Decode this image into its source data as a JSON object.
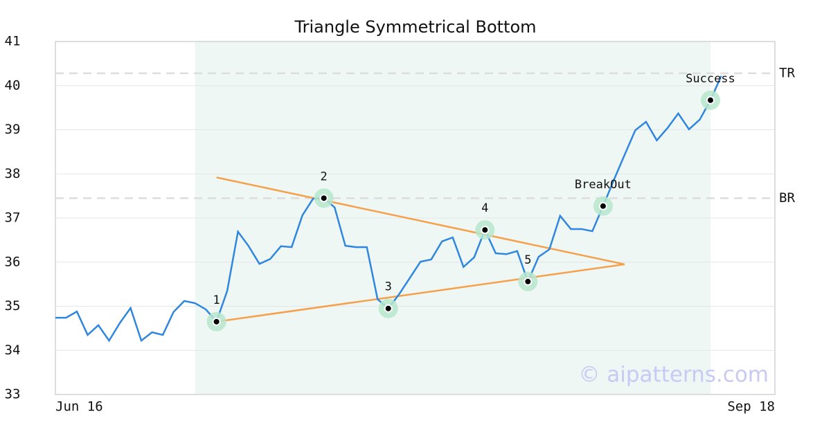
{
  "chart_data": {
    "type": "line",
    "title": "Triangle Symmetrical Bottom",
    "x": [
      0,
      1,
      2,
      3,
      4,
      5,
      6,
      7,
      8,
      9,
      10,
      11,
      12,
      13,
      14,
      15,
      16,
      17,
      18,
      19,
      20,
      21,
      22,
      23,
      24,
      25,
      26,
      27,
      28,
      29,
      30,
      31,
      32,
      33,
      34,
      35,
      36,
      37,
      38,
      39,
      40,
      41,
      42,
      43,
      44,
      45,
      46,
      47,
      48,
      49,
      50,
      51,
      52,
      53,
      54,
      55,
      56,
      57,
      58,
      59,
      60,
      61,
      62
    ],
    "values": [
      34.74,
      34.74,
      34.88,
      34.35,
      34.57,
      34.22,
      34.62,
      34.96,
      34.22,
      34.41,
      34.35,
      34.87,
      35.12,
      35.07,
      34.93,
      34.65,
      35.35,
      36.69,
      36.36,
      35.96,
      36.07,
      36.36,
      36.34,
      37.06,
      37.44,
      37.45,
      37.24,
      36.37,
      36.34,
      36.34,
      35.16,
      34.95,
      35.27,
      35.64,
      36.01,
      36.06,
      36.47,
      36.56,
      35.89,
      36.11,
      36.73,
      36.2,
      36.18,
      36.25,
      35.56,
      36.12,
      36.29,
      37.05,
      36.75,
      36.75,
      36.7,
      37.27,
      37.86,
      38.43,
      38.99,
      39.18,
      38.76,
      39.04,
      39.37,
      39.01,
      39.23,
      39.67,
      40.22
    ],
    "color": "#2e86de",
    "xlim": [
      0,
      67
    ],
    "xticks": [
      {
        "value": 0,
        "label": "Jun 16"
      },
      {
        "value": 67,
        "label": "Sep 18"
      }
    ],
    "ylim": [
      33,
      41
    ],
    "yticks": [
      33,
      34,
      35,
      36,
      37,
      38,
      39,
      40,
      41
    ],
    "grid": true,
    "shaded_range": [
      13,
      61
    ],
    "shade_color": "#eef7f3",
    "trend_color": "#f5a04a",
    "trend_lines": [
      {
        "x": [
          15,
          53
        ],
        "values": [
          34.65,
          35.95
        ]
      },
      {
        "x": [
          15,
          53
        ],
        "values": [
          37.92,
          35.95
        ]
      }
    ],
    "levels": [
      {
        "label": "TR",
        "value": 40.28
      },
      {
        "label": "BR",
        "value": 37.45
      }
    ],
    "points": [
      {
        "label": "1",
        "x": 15,
        "value": 34.65
      },
      {
        "label": "2",
        "x": 25,
        "value": 37.45
      },
      {
        "label": "3",
        "x": 31,
        "value": 34.95
      },
      {
        "label": "4",
        "x": 40,
        "value": 36.73
      },
      {
        "label": "5",
        "x": 44,
        "value": 35.56
      },
      {
        "label": "BreakOut",
        "x": 51,
        "value": 37.27
      },
      {
        "label": "Success",
        "x": 61,
        "value": 39.67
      }
    ],
    "watermark": "© aipatterns.com"
  }
}
